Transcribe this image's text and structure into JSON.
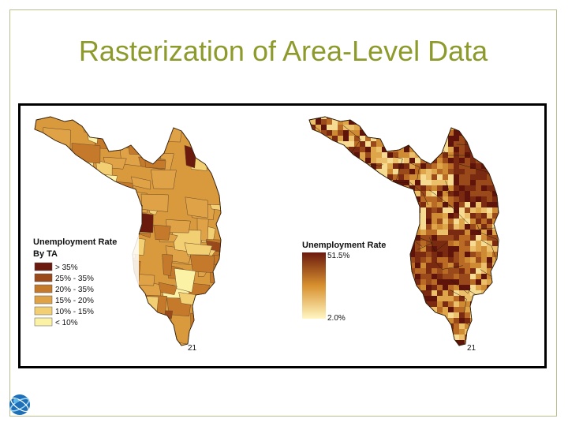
{
  "slide": {
    "title": "Rasterization of Area-Level Data"
  },
  "left_map": {
    "legend_title": "Unemployment Rate",
    "legend_subtitle": "By TA",
    "classes": [
      {
        "label": "> 35%",
        "color": "#6b1a0e"
      },
      {
        "label": "25% - 35%",
        "color": "#9a4a1a"
      },
      {
        "label": "20% - 35%",
        "color": "#c47a2a"
      },
      {
        "label": "15% - 20%",
        "color": "#dfa246"
      },
      {
        "label": "10% - 15%",
        "color": "#f2cf72"
      },
      {
        "label": "< 10%",
        "color": "#fcf2a6"
      }
    ],
    "place_label": "21"
  },
  "right_map": {
    "legend_title": "Unemployment Rate",
    "max_label": "51.5%",
    "min_label": "2.0%",
    "gradient_top": "#6b1a0e",
    "gradient_mid": "#d8912e",
    "gradient_bottom": "#fff7c2",
    "place_label": "21"
  },
  "logo": {
    "icon": "globe-logo-icon"
  }
}
